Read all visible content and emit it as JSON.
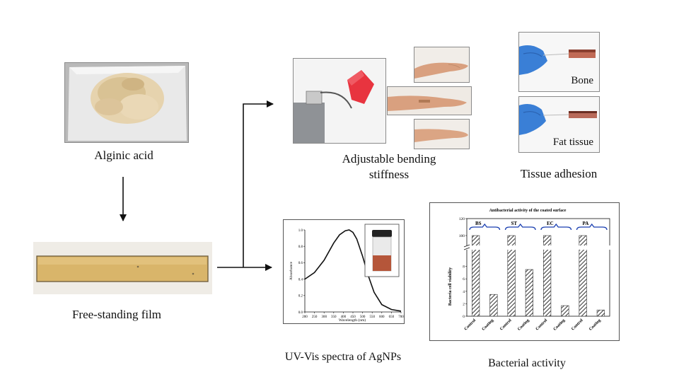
{
  "labels": {
    "alginic_acid": "Alginic acid",
    "free_standing_film": "Free-standing film",
    "bending_line1": "Adjustable bending",
    "bending_line2": "stiffness",
    "tissue_adhesion": "Tissue adhesion",
    "bone": "Bone",
    "fat_tissue": "Fat tissue",
    "uvvis": "UV-Vis spectra of AgNPs",
    "bacterial_activity": "Bacterial activity"
  },
  "colors": {
    "arrow": "#111111",
    "glove": "#3a7fd6",
    "tissue": "#c06a55",
    "film": "#d9b56a",
    "red_block": "#e8343f"
  },
  "chart_data": [
    {
      "type": "line",
      "title": "",
      "xlabel": "Wavelength (nm)",
      "ylabel": "Absorbance",
      "xlim": [
        200,
        700
      ],
      "ylim": [
        0,
        1.0
      ],
      "x_ticks": [
        "200",
        "250",
        "300",
        "350",
        "400",
        "450",
        "500",
        "550",
        "600",
        "650",
        "700"
      ],
      "y_ticks": [
        "0.0",
        "0.2",
        "0.4",
        "0.6",
        "0.8",
        "1.0"
      ],
      "series": [
        {
          "x": [
            200,
            250,
            300,
            350,
            380,
            410,
            430,
            450,
            470,
            500,
            530,
            560,
            600,
            650,
            700
          ],
          "values": [
            0.4,
            0.48,
            0.63,
            0.84,
            0.94,
            0.99,
            1.0,
            0.97,
            0.89,
            0.68,
            0.44,
            0.24,
            0.09,
            0.03,
            0.01
          ]
        }
      ]
    },
    {
      "type": "bar",
      "title": "Antibacterial activity of the coated surface",
      "ylabel": "Bacteria cell viability",
      "ylim": [
        0,
        10
      ],
      "y_break": true,
      "y_upper_tick": "120",
      "y_ticks": [
        "0",
        "2",
        "4",
        "6",
        "8",
        "100",
        "120"
      ],
      "groups": [
        "BS",
        "ST",
        "EC",
        "PA"
      ],
      "categories": [
        "Control",
        "Coating",
        "Control",
        "Coating",
        "Control",
        "Coating",
        "Control",
        "Coating"
      ],
      "values": [
        100,
        3.5,
        100,
        7.5,
        100,
        1.7,
        100,
        1.0
      ]
    }
  ]
}
